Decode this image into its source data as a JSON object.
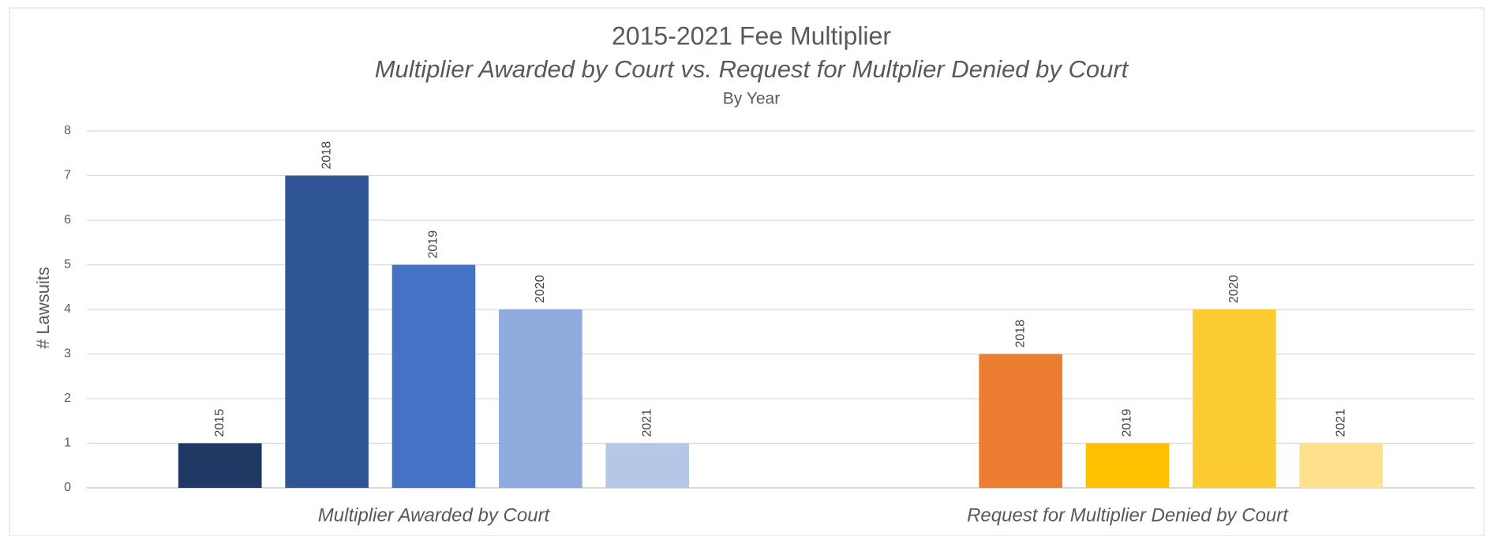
{
  "chart_data": {
    "type": "bar",
    "title": "2015-2021 Fee Multiplier",
    "subtitle": "Multiplier Awarded by Court vs. Request for Multplier Denied by Court",
    "subtitle2": "By Year",
    "y_label": "# Lawsuits",
    "categories": [
      "Multiplier Awarded by Court",
      "Request for Multiplier Denied by Court"
    ],
    "groups": [
      {
        "labels": [
          "2015",
          "2018",
          "2019",
          "2020",
          "2021"
        ],
        "values": [
          1,
          7,
          5,
          4,
          1
        ],
        "colors": [
          "#1f3864",
          "#2f5597",
          "#4472c4",
          "#8faadc",
          "#b4c7e7"
        ]
      },
      {
        "labels": [
          null,
          "2018",
          "2019",
          "2020",
          "2021"
        ],
        "values": [
          null,
          3,
          1,
          4,
          1
        ],
        "colors": [
          null,
          "#ed7d31",
          "#ffc000",
          "#fdcb32",
          "#fee18a"
        ]
      }
    ],
    "ylim": [
      0,
      8
    ],
    "yticks": [
      0,
      1,
      2,
      3,
      4,
      5,
      6,
      7,
      8
    ],
    "grid": true
  }
}
